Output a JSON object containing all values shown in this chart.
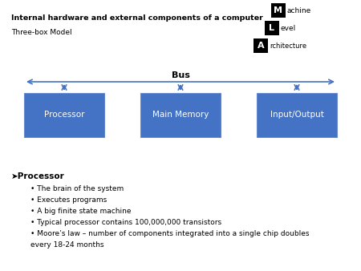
{
  "title": "Internal hardware and external components of a computer",
  "subtitle": "Three-box Model",
  "bg_color": "#ffffff",
  "box_color": "#4472C4",
  "box_labels": [
    "Processor",
    "Main Memory",
    "Input/Output"
  ],
  "bus_label": "Bus",
  "arrow_color": "#4472C4",
  "bullet_header": "➤Processor",
  "bullets": [
    "The brain of the system",
    "Executes programs",
    "A big finite state machine",
    "Typical processor contains 100,000,000 transistors",
    "Moore’s law – number of components integrated into a single chip doubles\n    every 18-24 months"
  ],
  "logo_letters_big": [
    "M",
    "L",
    "A"
  ],
  "logo_letters_small": [
    "achine",
    "evel",
    "rchitecture"
  ],
  "fig_width": 4.5,
  "fig_height": 3.38,
  "dpi": 100
}
